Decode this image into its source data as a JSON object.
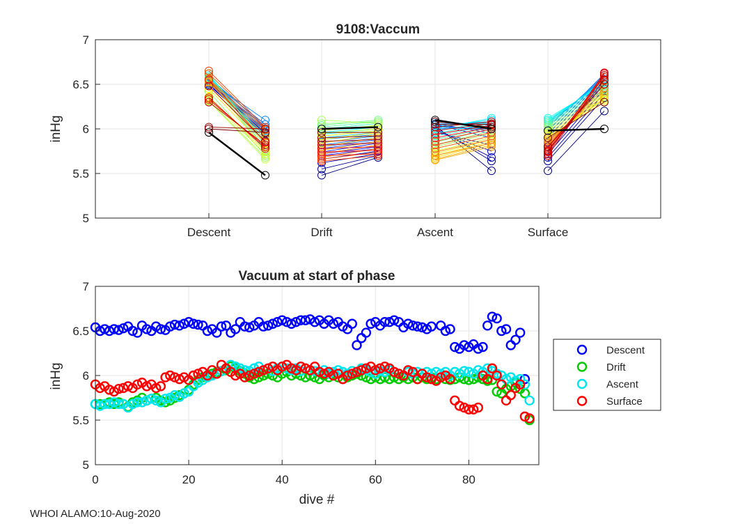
{
  "footer": "WHOI ALAMO:10-Aug-2020",
  "chart_data": [
    {
      "type": "line",
      "title": "9108:Vaccum",
      "ylabel": "inHg",
      "xlabel": "",
      "ylim": [
        5,
        7
      ],
      "yticks": [
        5,
        5.5,
        6,
        6.5,
        7
      ],
      "categories": [
        "Descent",
        "Drift",
        "Ascent",
        "Surface"
      ],
      "grid": true,
      "note": "Each dive drawn as a line segment from phase start to phase end, colored by dive number (dark blue early → red late); dive 94 in black",
      "series": [
        {
          "phase": "Descent",
          "start": [
            6.52,
            6.5,
            6.51,
            6.52,
            6.49,
            6.5,
            6.52,
            6.51,
            6.53,
            6.55,
            6.54,
            6.58,
            6.57,
            6.56,
            6.58,
            6.6,
            6.62,
            6.62,
            6.58,
            6.57,
            6.42,
            6.32,
            6.31,
            6.34,
            6.36,
            6.45,
            6.48,
            6.52,
            6.53,
            6.55,
            6.56,
            6.62,
            6.65,
            6.55,
            6.33,
            6.35,
            6.3,
            6.48,
            6.02,
            6.0,
            5.96
          ],
          "end": [
            5.95,
            5.92,
            5.98,
            6.0,
            5.94,
            5.96,
            6.0,
            5.98,
            6.02,
            6.05,
            6.1,
            6.02,
            5.98,
            5.93,
            5.88,
            5.85,
            5.82,
            5.78,
            5.76,
            5.74,
            5.7,
            5.68,
            5.66,
            5.72,
            5.75,
            5.8,
            5.84,
            5.88,
            5.92,
            5.96,
            5.99,
            6.0,
            6.02,
            5.85,
            5.8,
            5.78,
            5.82,
            5.86,
            6.0,
            5.96,
            5.48
          ]
        },
        {
          "phase": "Drift",
          "start": [
            5.48,
            5.55,
            5.62,
            5.66,
            5.7,
            5.72,
            5.74,
            5.78,
            5.8,
            5.82,
            5.85,
            5.88,
            5.9,
            5.92,
            5.94,
            5.96,
            5.98,
            6.0,
            6.02,
            6.04,
            6.06,
            6.1,
            5.98,
            5.95,
            5.92,
            5.88,
            5.84,
            5.8,
            5.76,
            5.72,
            5.68,
            5.66,
            5.64,
            5.7,
            5.74,
            5.78,
            5.82,
            5.86,
            5.9,
            5.96,
            6.0
          ],
          "end": [
            5.68,
            5.7,
            5.72,
            5.75,
            5.78,
            5.8,
            5.84,
            5.86,
            5.88,
            5.9,
            5.92,
            5.94,
            5.96,
            5.98,
            6.0,
            6.02,
            6.04,
            6.06,
            6.08,
            6.1,
            6.08,
            6.06,
            6.04,
            6.0,
            5.98,
            5.96,
            5.94,
            5.9,
            5.86,
            5.82,
            5.78,
            5.74,
            5.7,
            5.72,
            5.76,
            5.8,
            5.84,
            5.88,
            5.92,
            5.96,
            6.02
          ]
        },
        {
          "phase": "Ascent",
          "start": [
            6.04,
            6.02,
            6.0,
            5.98,
            5.96,
            6.05,
            6.06,
            6.04,
            6.02,
            6.0,
            6.08,
            6.06,
            6.04,
            6.02,
            6.0,
            5.98,
            5.95,
            5.92,
            5.88,
            5.85,
            5.82,
            5.8,
            5.78,
            5.75,
            5.72,
            5.7,
            5.68,
            5.66,
            5.65,
            5.7,
            5.74,
            5.78,
            5.82,
            5.86,
            5.9,
            5.94,
            5.98,
            6.02,
            6.05,
            6.08,
            6.1
          ],
          "end": [
            5.53,
            5.64,
            5.68,
            5.75,
            5.82,
            5.9,
            5.95,
            5.98,
            6.0,
            6.02,
            6.04,
            6.06,
            6.08,
            6.1,
            6.12,
            6.08,
            6.06,
            6.04,
            6.02,
            6.0,
            5.98,
            5.95,
            5.92,
            5.9,
            5.88,
            5.86,
            5.84,
            5.82,
            5.8,
            5.84,
            5.88,
            5.92,
            5.96,
            6.0,
            6.02,
            6.04,
            6.06,
            6.08,
            6.05,
            6.02,
            6.0
          ]
        },
        {
          "phase": "Surface",
          "start": [
            5.53,
            5.64,
            5.68,
            5.72,
            5.76,
            5.8,
            5.85,
            5.9,
            5.94,
            5.98,
            6.02,
            6.04,
            6.06,
            6.08,
            6.1,
            6.12,
            6.1,
            6.08,
            6.06,
            6.04,
            6.02,
            6.0,
            5.98,
            5.96,
            5.94,
            5.92,
            5.9,
            5.88,
            5.86,
            5.84,
            5.82,
            5.8,
            5.78,
            5.76,
            5.74,
            5.72,
            5.7,
            5.75,
            5.8,
            5.9,
            5.98
          ],
          "end": [
            6.2,
            6.35,
            6.4,
            6.45,
            6.5,
            6.52,
            6.55,
            6.58,
            6.6,
            6.62,
            6.6,
            6.58,
            6.56,
            6.54,
            6.52,
            6.5,
            6.48,
            6.46,
            6.44,
            6.42,
            6.4,
            6.38,
            6.36,
            6.34,
            6.32,
            6.3,
            6.34,
            6.38,
            6.42,
            6.46,
            6.5,
            6.54,
            6.58,
            6.6,
            6.62,
            6.63,
            6.6,
            6.55,
            6.5,
            6.3,
            6.0
          ]
        }
      ]
    },
    {
      "type": "scatter",
      "title": "Vacuum at start of phase",
      "xlabel": "dive #",
      "ylabel": "inHg",
      "xlim": [
        0,
        95
      ],
      "ylim": [
        5,
        7
      ],
      "xticks": [
        0,
        20,
        40,
        60,
        80
      ],
      "yticks": [
        5,
        5.5,
        6,
        6.5,
        7
      ],
      "grid": true,
      "legend": "right",
      "series": [
        {
          "name": "Descent",
          "color": "#0000ff",
          "values": [
            6.54,
            6.5,
            6.52,
            6.5,
            6.52,
            6.51,
            6.53,
            6.55,
            6.5,
            6.48,
            6.56,
            6.52,
            6.5,
            6.55,
            6.52,
            6.51,
            6.55,
            6.57,
            6.56,
            6.58,
            6.6,
            6.58,
            6.57,
            6.56,
            6.5,
            6.52,
            6.48,
            6.55,
            6.56,
            6.48,
            6.52,
            6.6,
            6.55,
            6.54,
            6.56,
            6.6,
            6.55,
            6.56,
            6.58,
            6.6,
            6.62,
            6.6,
            6.58,
            6.6,
            6.62,
            6.62,
            6.63,
            6.6,
            6.62,
            6.58,
            6.62,
            6.58,
            6.6,
            6.55,
            6.52,
            6.58,
            6.34,
            6.42,
            6.48,
            6.58,
            6.6,
            6.56,
            6.6,
            6.6,
            6.62,
            6.6,
            6.54,
            6.58,
            6.56,
            6.55,
            6.54,
            6.52,
            6.55,
            null,
            6.56,
            6.5,
            6.52,
            6.32,
            6.3,
            6.34,
            6.32,
            6.35,
            6.3,
            6.32,
            6.56,
            6.66,
            6.64,
            6.5,
            6.52,
            6.34,
            6.4,
            6.48,
            5.96,
            null,
            null
          ]
        },
        {
          "name": "Drift",
          "color": "#00cc00",
          "values": [
            5.68,
            5.68,
            5.68,
            5.7,
            5.68,
            5.7,
            5.68,
            5.65,
            5.7,
            5.72,
            5.75,
            5.72,
            5.74,
            5.75,
            5.72,
            5.7,
            5.72,
            5.75,
            5.78,
            5.8,
            5.84,
            5.9,
            5.95,
            5.98,
            6.0,
            6.02,
            6.04,
            6.05,
            6.06,
            6.1,
            6.08,
            6.05,
            6.02,
            5.98,
            5.96,
            5.98,
            6.0,
            6.02,
            6.0,
            5.98,
            6.02,
            6.04,
            6.0,
            6.02,
            6.0,
            5.98,
            6.0,
            5.98,
            5.96,
            6.0,
            5.98,
            6.0,
            5.98,
            5.96,
            5.98,
            6.0,
            6.02,
            6.0,
            5.98,
            5.96,
            5.98,
            5.96,
            5.98,
            5.96,
            5.98,
            5.96,
            5.98,
            5.96,
            5.98,
            5.96,
            5.98,
            5.96,
            5.98,
            5.96,
            5.98,
            5.96,
            5.95,
            5.96,
            5.98,
            5.96,
            5.95,
            5.96,
            5.98,
            5.96,
            5.94,
            5.95,
            5.82,
            5.8,
            5.85,
            5.88,
            5.92,
            5.85,
            5.8,
            5.5,
            null
          ]
        },
        {
          "name": "Ascent",
          "color": "#00e5ee",
          "values": [
            5.68,
            5.66,
            5.68,
            5.68,
            5.7,
            5.68,
            5.68,
            5.64,
            5.68,
            5.7,
            5.7,
            5.72,
            5.74,
            5.72,
            5.7,
            5.74,
            5.75,
            5.78,
            5.76,
            5.8,
            5.82,
            5.88,
            5.92,
            5.95,
            5.98,
            6.0,
            6.02,
            6.05,
            6.08,
            6.12,
            6.1,
            6.08,
            6.06,
            6.05,
            6.08,
            6.1,
            6.06,
            6.08,
            6.05,
            6.08,
            6.1,
            6.08,
            6.06,
            6.08,
            6.05,
            6.08,
            6.06,
            6.05,
            6.04,
            6.06,
            6.02,
            6.04,
            6.06,
            6.04,
            6.02,
            6.05,
            6.04,
            6.08,
            6.06,
            6.04,
            6.02,
            6.05,
            6.04,
            6.06,
            6.04,
            6.02,
            6.0,
            6.04,
            6.02,
            6.04,
            6.02,
            6.04,
            6.02,
            6.04,
            6.02,
            6.04,
            6.0,
            6.04,
            6.02,
            6.05,
            6.04,
            6.02,
            6.06,
            6.04,
            6.08,
            6.05,
            6.02,
            6.0,
            5.96,
            5.98,
            5.94,
            5.96,
            5.9,
            5.72,
            null
          ]
        },
        {
          "name": "Surface",
          "color": "#ff0000",
          "values": [
            5.9,
            5.86,
            5.88,
            5.84,
            5.82,
            5.85,
            5.86,
            5.88,
            5.86,
            5.9,
            5.92,
            5.88,
            5.9,
            5.86,
            5.88,
            5.98,
            6.0,
            5.98,
            5.96,
            5.98,
            5.95,
            6.0,
            6.02,
            6.04,
            6.0,
            6.06,
            6.02,
            6.12,
            6.08,
            6.04,
            6.0,
            6.02,
            5.98,
            6.0,
            6.02,
            6.04,
            6.06,
            6.08,
            6.1,
            6.06,
            6.1,
            6.12,
            6.08,
            6.06,
            6.1,
            6.08,
            6.06,
            6.1,
            6.04,
            6.02,
            6.04,
            6.0,
            6.02,
            5.96,
            6.0,
            6.02,
            6.04,
            6.06,
            6.08,
            6.1,
            6.06,
            6.08,
            6.1,
            6.08,
            6.04,
            6.02,
            6.0,
            6.06,
            6.04,
            5.96,
            6.02,
            5.98,
            5.96,
            5.94,
            5.98,
            6.0,
            5.96,
            5.72,
            5.66,
            5.64,
            5.62,
            5.62,
            5.64,
            6.0,
            5.96,
            6.08,
            6.0,
            5.9,
            5.72,
            5.78,
            5.86,
            5.9,
            5.54,
            5.52,
            null
          ]
        }
      ]
    }
  ]
}
